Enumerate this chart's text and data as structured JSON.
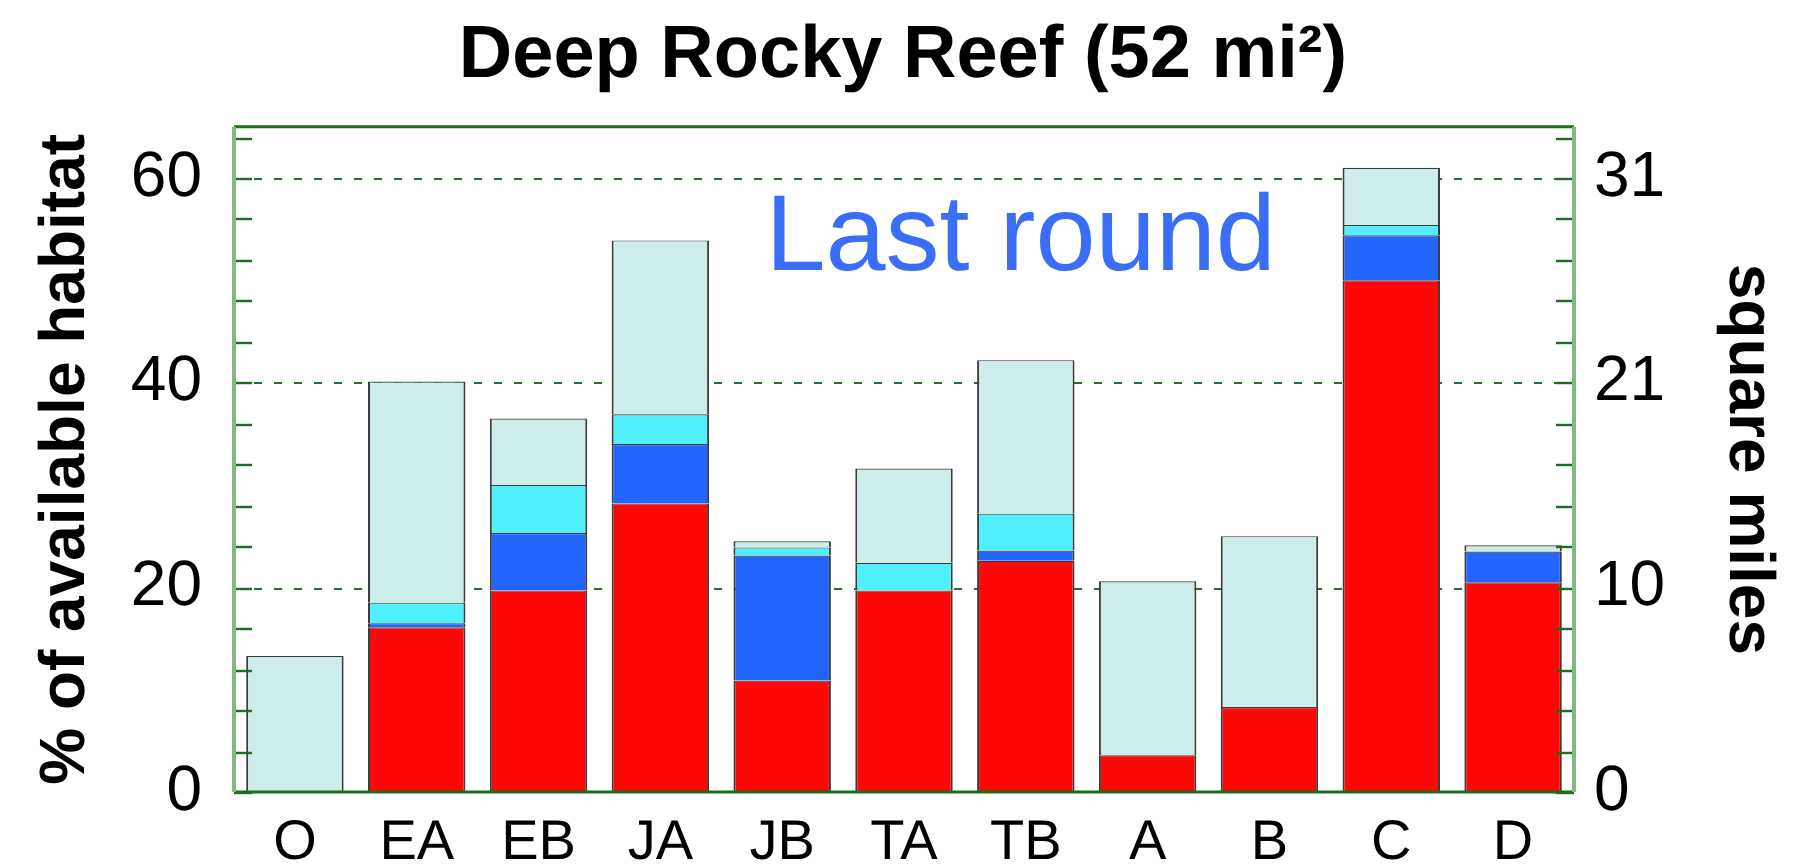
{
  "chart_data": {
    "type": "bar",
    "title": "Deep Rocky Reef (52 mi²)",
    "ylabel": "% of available habitat",
    "y2label": "square miles",
    "categories": [
      "O",
      "EA",
      "EB",
      "JA",
      "JB",
      "TA",
      "TB",
      "A",
      "B",
      "C",
      "D"
    ],
    "stacked": true,
    "series": [
      {
        "color": "#ff0707",
        "values": [
          0,
          16.1,
          19.7,
          28.2,
          10.9,
          19.7,
          22.6,
          3.6,
          8.3,
          50.0,
          20.5
        ]
      },
      {
        "color": "#2266ff",
        "values": [
          0,
          0.4,
          5.6,
          5.8,
          12.2,
          0,
          1.0,
          0,
          0,
          4.4,
          3.0
        ]
      },
      {
        "color": "#4ff0fc",
        "values": [
          0,
          2.0,
          4.7,
          2.9,
          0.8,
          2.7,
          3.6,
          0,
          0,
          1.0,
          0
        ]
      },
      {
        "color": "#ccede9",
        "values": [
          13.3,
          21.6,
          6.5,
          17.0,
          0.6,
          9.2,
          15.0,
          17.0,
          16.7,
          5.6,
          0.6
        ]
      }
    ],
    "ylim": [
      0,
      65
    ],
    "yticks": [
      0,
      {
        "value": 4,
        "label": null
      },
      {
        "value": 8,
        "label": null
      },
      {
        "value": 12,
        "label": null
      },
      {
        "value": 16,
        "label": null
      },
      20,
      {
        "value": 24,
        "label": null
      },
      {
        "value": 28,
        "label": null
      },
      {
        "value": 32,
        "label": null
      },
      {
        "value": 36,
        "label": null
      },
      40,
      {
        "value": 44,
        "label": null
      },
      {
        "value": 48,
        "label": null
      },
      {
        "value": 52,
        "label": null
      },
      {
        "value": 56,
        "label": null
      },
      60,
      {
        "value": 64,
        "label": null
      }
    ],
    "y2lim": [
      0,
      33.8
    ],
    "y2ticks": [
      0,
      {
        "value": 2.08,
        "label": null
      },
      {
        "value": 4.16,
        "label": null
      },
      {
        "value": 6.24,
        "label": null
      },
      {
        "value": 8.32,
        "label": null
      },
      {
        "value": 10.4,
        "label": "10"
      },
      {
        "value": 12.48,
        "label": null
      },
      {
        "value": 14.56,
        "label": null
      },
      {
        "value": 16.64,
        "label": null
      },
      {
        "value": 18.72,
        "label": null
      },
      {
        "value": 20.8,
        "label": "21"
      },
      {
        "value": 22.88,
        "label": null
      },
      {
        "value": 24.96,
        "label": null
      },
      {
        "value": 27.04,
        "label": null
      },
      {
        "value": 29.12,
        "label": null
      },
      {
        "value": 31.2,
        "label": "31"
      },
      {
        "value": 33.28,
        "label": null
      }
    ],
    "grid": "y",
    "legend": false,
    "annotations": [
      "Last round"
    ]
  }
}
